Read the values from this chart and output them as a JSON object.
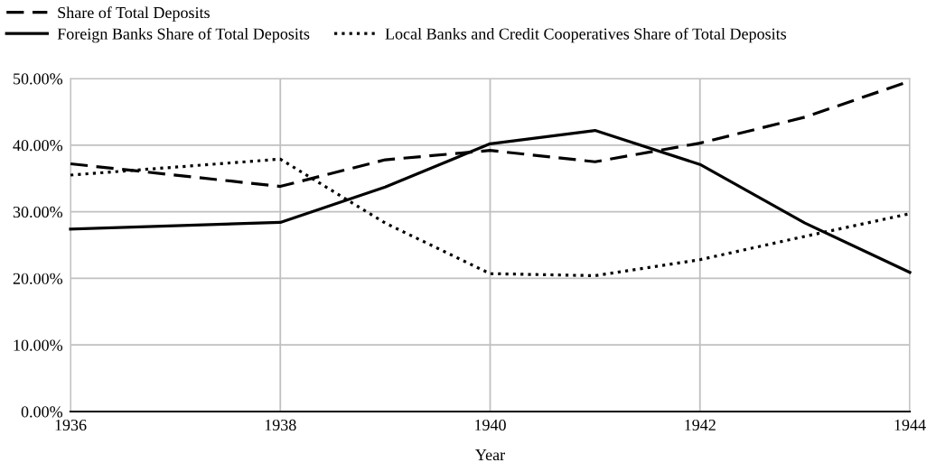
{
  "chart_data": {
    "type": "line",
    "xlabel": "Year",
    "x": [
      1936,
      1938,
      1939,
      1940,
      1941,
      1942,
      1943,
      1944
    ],
    "series": [
      {
        "name": "Share of Total Deposits",
        "color": "#000000",
        "line_style": "dashed",
        "values": [
          37.2,
          33.8,
          37.8,
          39.2,
          37.5,
          40.3,
          44.2,
          49.6
        ]
      },
      {
        "name": "Foreign Banks Share of Total Deposits",
        "color": "#000000",
        "line_style": "solid",
        "values": [
          27.4,
          28.4,
          33.7,
          40.2,
          42.2,
          37.1,
          28.3,
          20.9
        ]
      },
      {
        "name": "Local Banks and Credit Cooperatives Share of Total Deposits",
        "color": "#000000",
        "line_style": "dotted",
        "values": [
          35.5,
          37.9,
          28.3,
          20.7,
          20.4,
          22.8,
          26.3,
          29.7
        ]
      }
    ],
    "xlim": [
      1936,
      1944
    ],
    "xticks": [
      1936,
      1938,
      1940,
      1942,
      1944
    ],
    "ylim": [
      0,
      50
    ],
    "yticks": [
      {
        "value": 0,
        "label": "0.00%"
      },
      {
        "value": 10,
        "label": "10.00%"
      },
      {
        "value": 20,
        "label": "20.00%"
      },
      {
        "value": 30,
        "label": "30.00%"
      },
      {
        "value": 40,
        "label": "40.00%"
      },
      {
        "value": 50,
        "label": "50.00%"
      }
    ],
    "grid": true,
    "legend": "top left"
  }
}
